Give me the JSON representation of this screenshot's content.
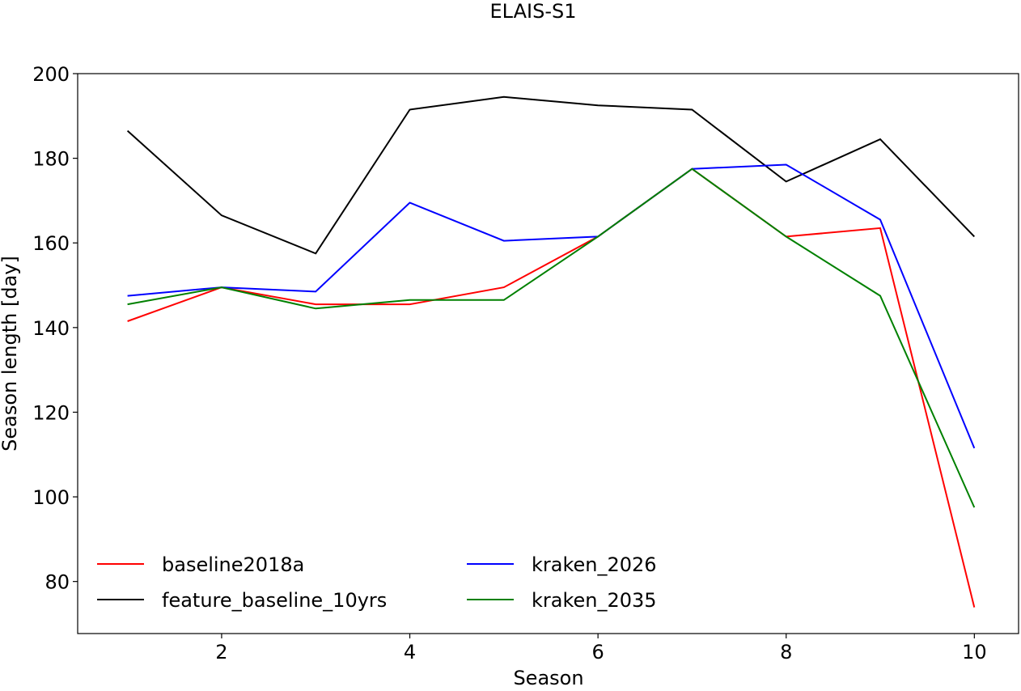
{
  "chart_data": {
    "type": "line",
    "title": "ELAIS-S1",
    "xlabel": "Season",
    "ylabel": "Season length [day]",
    "x": [
      1,
      2,
      3,
      4,
      5,
      6,
      7,
      8,
      9,
      10
    ],
    "xlim": [
      0.47,
      10.47
    ],
    "ylim": [
      67.7,
      200
    ],
    "xticks": [
      2,
      4,
      6,
      8,
      10
    ],
    "yticks": [
      80,
      100,
      120,
      140,
      160,
      180,
      200
    ],
    "grid": false,
    "legend_position": "lower-left",
    "series": [
      {
        "name": "baseline2018a",
        "color": "#ff0000",
        "values": [
          141.5,
          149.5,
          145.5,
          145.5,
          149.5,
          161.5,
          177.5,
          161.5,
          163.5,
          73.9
        ]
      },
      {
        "name": "feature_baseline_10yrs",
        "color": "#000000",
        "values": [
          186.5,
          166.5,
          157.5,
          191.5,
          194.5,
          192.5,
          191.5,
          174.5,
          184.5,
          161.5
        ]
      },
      {
        "name": "kraken_2026",
        "color": "#0000ff",
        "values": [
          147.5,
          149.5,
          148.5,
          169.5,
          160.5,
          161.5,
          177.5,
          178.5,
          165.5,
          111.5
        ]
      },
      {
        "name": "kraken_2035",
        "color": "#008000",
        "values": [
          145.5,
          149.5,
          144.5,
          146.5,
          146.5,
          161.5,
          177.5,
          161.5,
          147.5,
          97.5
        ]
      }
    ]
  }
}
